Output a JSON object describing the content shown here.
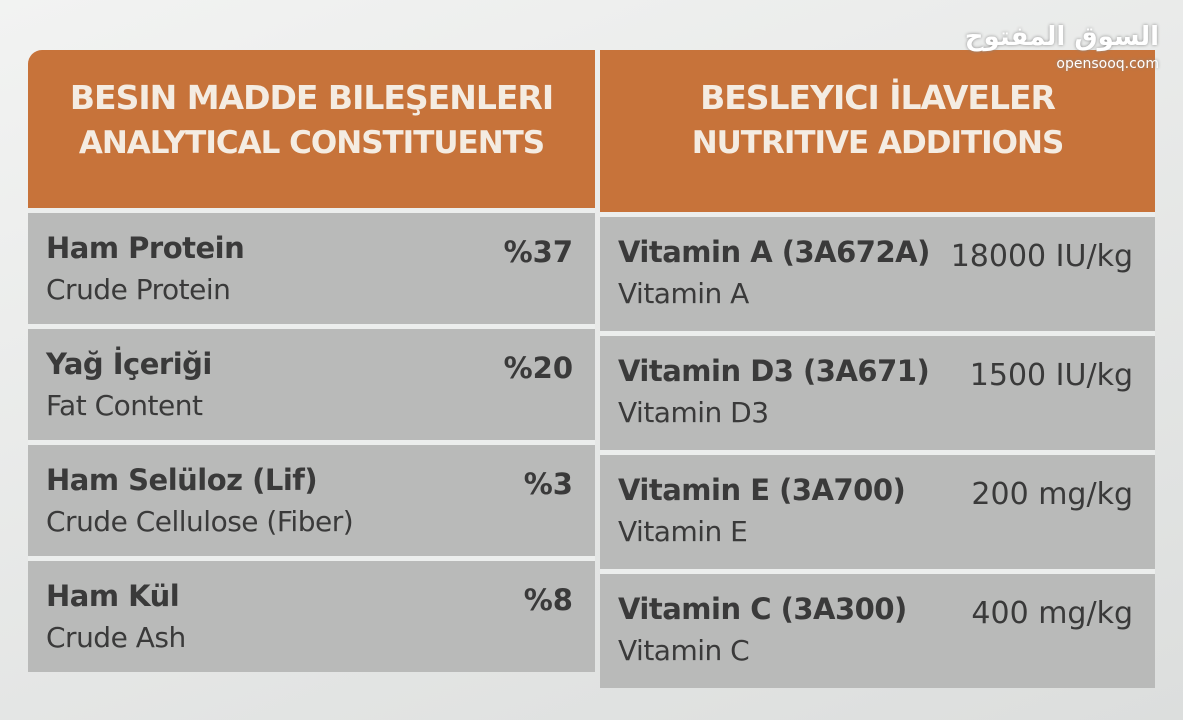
{
  "watermark": {
    "arabic": "السوق المفتوح",
    "latin": "opensooq.com"
  },
  "left": {
    "title_tr": "BESIN MADDE BILEŞENLERI",
    "title_en": "ANALYTICAL CONSTITUENTS",
    "rows": [
      {
        "name_tr": "Ham Protein",
        "name_en": "Crude Protein",
        "value": "%37"
      },
      {
        "name_tr": "Yağ İçeriği",
        "name_en": "Fat Content",
        "value": "%20"
      },
      {
        "name_tr": "Ham Selüloz (Lif)",
        "name_en": "Crude Cellulose (Fiber)",
        "value": "%3"
      },
      {
        "name_tr": "Ham Kül",
        "name_en": "Crude Ash",
        "value": "%8"
      }
    ]
  },
  "right": {
    "title_tr": "BESLEYICI İLAVELER",
    "title_en": "NUTRITIVE ADDITIONS",
    "rows": [
      {
        "name_tr": "Vitamin A (3A672A)",
        "name_en": "Vitamin A",
        "value": "18000 IU/kg"
      },
      {
        "name_tr": "Vitamin D3 (3A671)",
        "name_en": "Vitamin D3",
        "value": "1500 IU/kg"
      },
      {
        "name_tr": "Vitamin E (3A700)",
        "name_en": "Vitamin E",
        "value": "200 mg/kg"
      },
      {
        "name_tr": "Vitamin C (3A300)",
        "name_en": "Vitamin C",
        "value": "400 mg/kg"
      }
    ]
  }
}
